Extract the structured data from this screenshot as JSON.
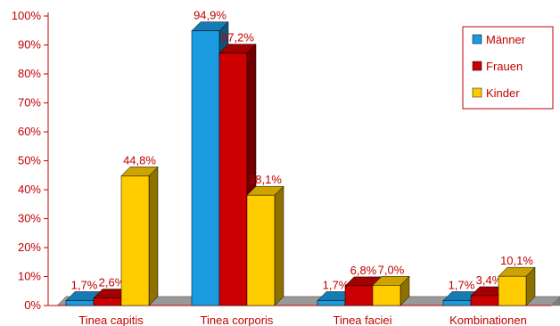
{
  "chart_data": {
    "type": "bar",
    "style": "3d-clustered-column",
    "categories": [
      "Tinea capitis",
      "Tinea corporis",
      "Tinea faciei",
      "Kombinationen"
    ],
    "series": [
      {
        "name": "Männer",
        "color": "#1a9be0",
        "values": [
          1.7,
          94.9,
          1.7,
          1.7
        ],
        "labels": [
          "1,7%",
          "94,9%",
          "1,7%",
          "1,7%"
        ]
      },
      {
        "name": "Frauen",
        "color": "#cc0000",
        "values": [
          2.6,
          87.2,
          6.8,
          3.4
        ],
        "labels": [
          "2,6%",
          "87,2%",
          "6,8%",
          "3,4%"
        ]
      },
      {
        "name": "Kinder",
        "color": "#ffcc00",
        "values": [
          44.8,
          38.1,
          7.0,
          10.1
        ],
        "labels": [
          "44,8%",
          "38,1%",
          "7,0%",
          "10,1%"
        ]
      }
    ],
    "ylim": [
      0,
      100
    ],
    "yticks": [
      "0%",
      "10%",
      "20%",
      "30%",
      "40%",
      "50%",
      "60%",
      "70%",
      "80%",
      "90%",
      "100%"
    ],
    "legend_position": "top-right",
    "grid": false,
    "text_color": "#c00000"
  }
}
